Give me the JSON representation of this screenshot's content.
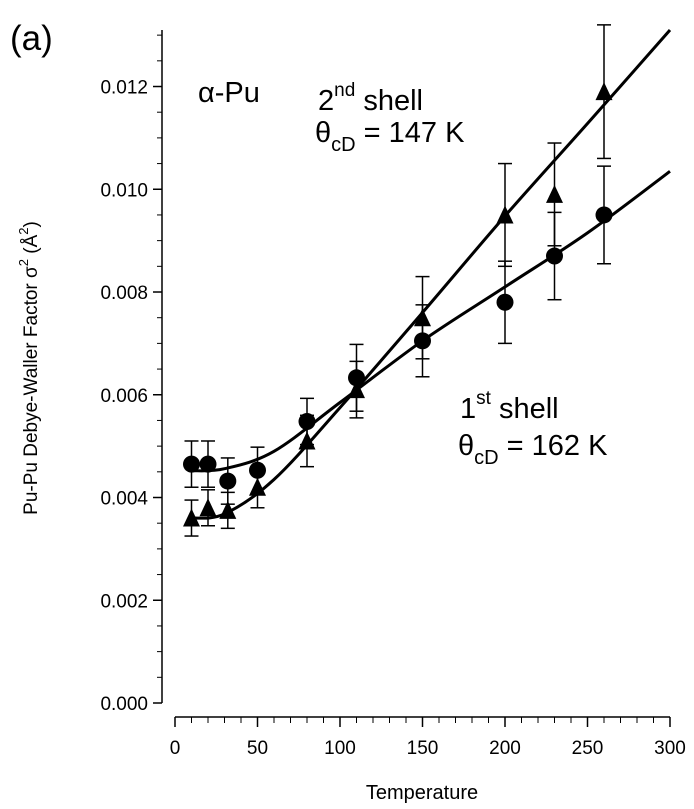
{
  "chart_data": {
    "type": "scatter",
    "panel_label": "(a)",
    "xlabel": "Temperature",
    "ylabel_parts": {
      "main": "Pu-Pu Debye-Waller Factor σ",
      "exp": "2",
      "unit_open": " (Å",
      "unit_exp": "2",
      "unit_close": ")"
    },
    "xlim": [
      0,
      300
    ],
    "ylim": [
      0,
      0.0131
    ],
    "xticks": [
      0,
      50,
      100,
      150,
      200,
      250,
      300
    ],
    "yticks": [
      0.0,
      0.002,
      0.004,
      0.006,
      0.008,
      0.01,
      0.012
    ],
    "ytick_labels": [
      "0.000",
      "0.002",
      "0.004",
      "0.006",
      "0.008",
      "0.010",
      "0.012"
    ],
    "grid": false,
    "series": [
      {
        "marker": "circle",
        "points": [
          {
            "x": 10,
            "y": 0.00465,
            "err": 0.00045
          },
          {
            "x": 20,
            "y": 0.00465,
            "err": 0.00045
          },
          {
            "x": 32,
            "y": 0.00432,
            "err": 0.00045
          },
          {
            "x": 50,
            "y": 0.00453,
            "err": 0.00045
          },
          {
            "x": 80,
            "y": 0.00548,
            "err": 0.00045
          },
          {
            "x": 110,
            "y": 0.00633,
            "err": 0.00065
          },
          {
            "x": 150,
            "y": 0.00705,
            "err": 0.0007
          },
          {
            "x": 200,
            "y": 0.0078,
            "err": 0.0008
          },
          {
            "x": 230,
            "y": 0.0087,
            "err": 0.00085
          },
          {
            "x": 260,
            "y": 0.0095,
            "err": 0.00095
          }
        ],
        "fit": [
          [
            10,
            0.00452
          ],
          [
            30,
            0.00456
          ],
          [
            60,
            0.0049
          ],
          [
            100,
            0.00585
          ],
          [
            150,
            0.00705
          ],
          [
            200,
            0.0081
          ],
          [
            250,
            0.00915
          ],
          [
            300,
            0.01035
          ]
        ]
      },
      {
        "marker": "triangle",
        "points": [
          {
            "x": 10,
            "y": 0.0036,
            "err": 0.00035
          },
          {
            "x": 20,
            "y": 0.0038,
            "err": 0.00035
          },
          {
            "x": 32,
            "y": 0.00375,
            "err": 0.00035
          },
          {
            "x": 50,
            "y": 0.0042,
            "err": 0.0004
          },
          {
            "x": 80,
            "y": 0.0051,
            "err": 0.0005
          },
          {
            "x": 110,
            "y": 0.0061,
            "err": 0.00055
          },
          {
            "x": 150,
            "y": 0.0075,
            "err": 0.0008
          },
          {
            "x": 200,
            "y": 0.0095,
            "err": 0.001
          },
          {
            "x": 230,
            "y": 0.0099,
            "err": 0.001
          },
          {
            "x": 260,
            "y": 0.0119,
            "err": 0.0013
          }
        ],
        "fit": [
          [
            10,
            0.0036
          ],
          [
            30,
            0.00368
          ],
          [
            60,
            0.00435
          ],
          [
            100,
            0.00575
          ],
          [
            150,
            0.0076
          ],
          [
            200,
            0.00948
          ],
          [
            250,
            0.01128
          ],
          [
            300,
            0.0131
          ]
        ]
      }
    ],
    "annotations": {
      "material": "α-Pu",
      "shell2": {
        "n": "2",
        "sup": "nd",
        "word": " shell",
        "theta": "θ",
        "sub": "cD",
        "value": " = 147 K"
      },
      "shell1": {
        "n": "1",
        "sup": "st",
        "word": " shell",
        "theta": "θ",
        "sub": "cD",
        "value": " = 162 K"
      }
    }
  }
}
